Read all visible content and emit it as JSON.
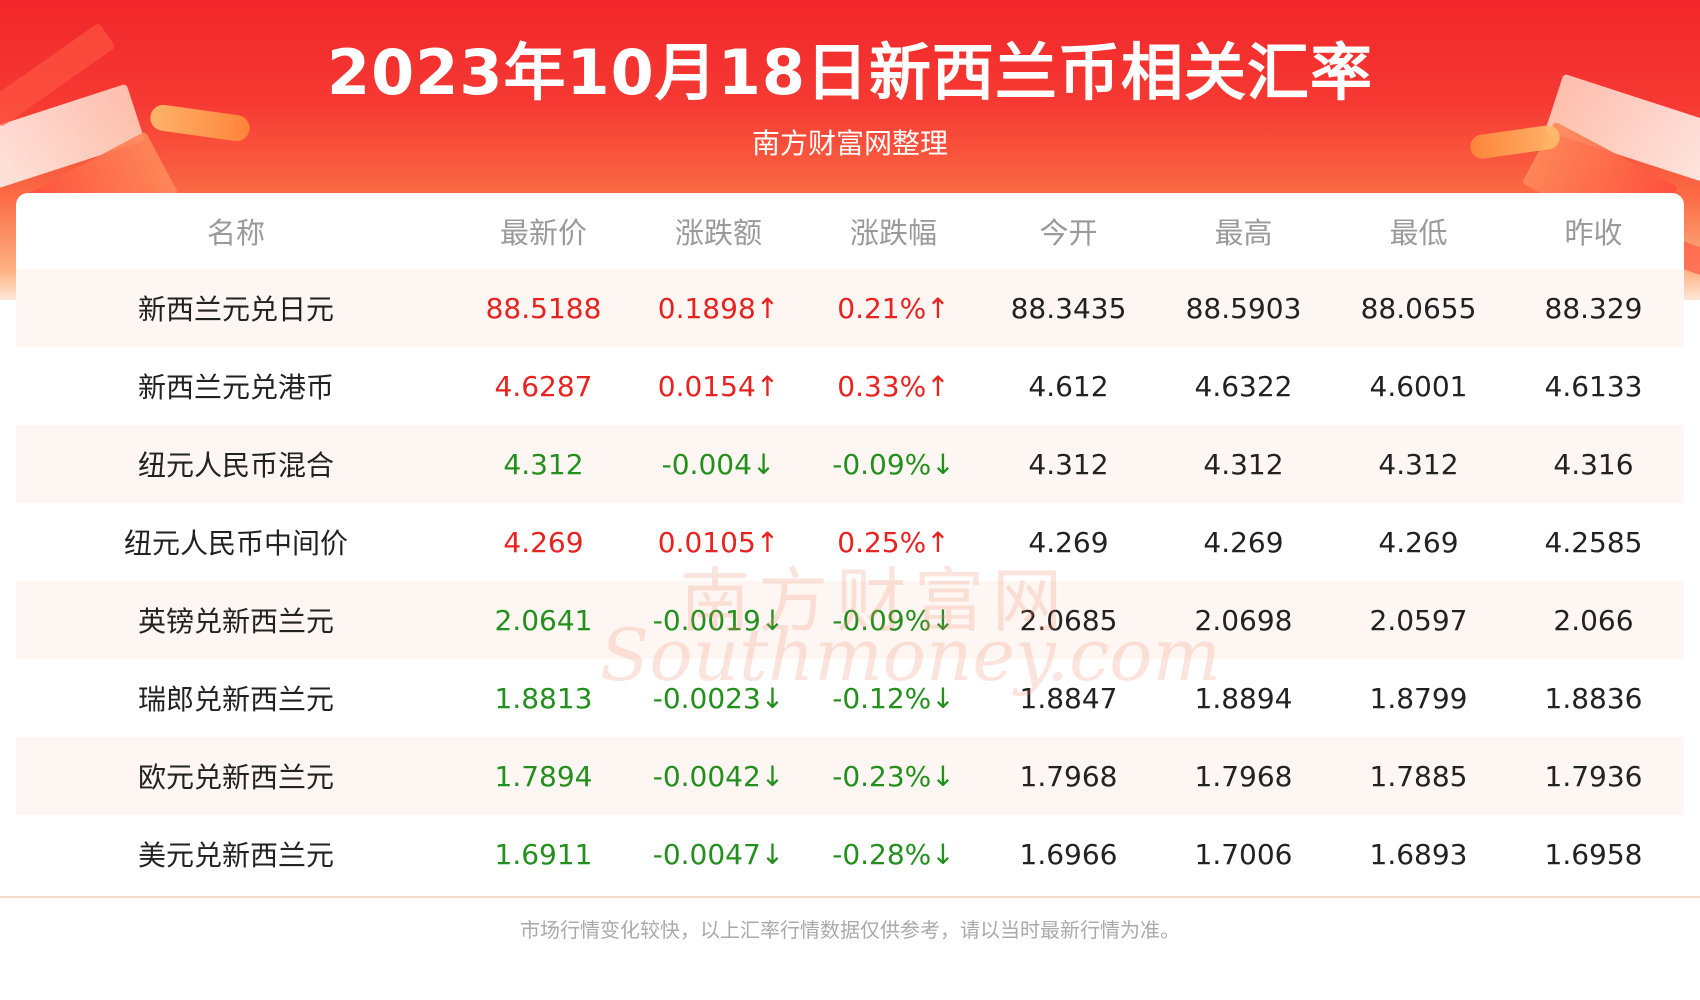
{
  "header": {
    "title": "2023年10月18日新西兰币相关汇率",
    "subtitle": "南方财富网整理"
  },
  "table": {
    "columns": [
      "名称",
      "最新价",
      "涨跌额",
      "涨跌幅",
      "今开",
      "最高",
      "最低",
      "昨收"
    ],
    "rows": [
      {
        "name": "新西兰元兑日元",
        "latest": "88.5188",
        "change": "0.1898↑",
        "pct": "0.21%↑",
        "open": "88.3435",
        "high": "88.5903",
        "low": "88.0655",
        "prev_close": "88.329",
        "trend": "up"
      },
      {
        "name": "新西兰元兑港币",
        "latest": "4.6287",
        "change": "0.0154↑",
        "pct": "0.33%↑",
        "open": "4.612",
        "high": "4.6322",
        "low": "4.6001",
        "prev_close": "4.6133",
        "trend": "up"
      },
      {
        "name": "纽元人民币混合",
        "latest": "4.312",
        "change": "-0.004↓",
        "pct": "-0.09%↓",
        "open": "4.312",
        "high": "4.312",
        "low": "4.312",
        "prev_close": "4.316",
        "trend": "down"
      },
      {
        "name": "纽元人民币中间价",
        "latest": "4.269",
        "change": "0.0105↑",
        "pct": "0.25%↑",
        "open": "4.269",
        "high": "4.269",
        "low": "4.269",
        "prev_close": "4.2585",
        "trend": "up"
      },
      {
        "name": "英镑兑新西兰元",
        "latest": "2.0641",
        "change": "-0.0019↓",
        "pct": "-0.09%↓",
        "open": "2.0685",
        "high": "2.0698",
        "low": "2.0597",
        "prev_close": "2.066",
        "trend": "down"
      },
      {
        "name": "瑞郎兑新西兰元",
        "latest": "1.8813",
        "change": "-0.0023↓",
        "pct": "-0.12%↓",
        "open": "1.8847",
        "high": "1.8894",
        "low": "1.8799",
        "prev_close": "1.8836",
        "trend": "down"
      },
      {
        "name": "欧元兑新西兰元",
        "latest": "1.7894",
        "change": "-0.0042↓",
        "pct": "-0.23%↓",
        "open": "1.7968",
        "high": "1.7968",
        "low": "1.7885",
        "prev_close": "1.7936",
        "trend": "down"
      },
      {
        "name": "美元兑新西兰元",
        "latest": "1.6911",
        "change": "-0.0047↓",
        "pct": "-0.28%↓",
        "open": "1.6966",
        "high": "1.7006",
        "low": "1.6893",
        "prev_close": "1.6958",
        "trend": "down"
      }
    ]
  },
  "watermark": {
    "cn": "南方财富网",
    "en": "Southmoney.com"
  },
  "footer": {
    "note": "市场行情变化较快，以上汇率行情数据仅供参考，请以当时最新行情为准。"
  },
  "colors": {
    "up": "#e8231f",
    "down": "#23901e",
    "header_red": "#f1262a"
  }
}
